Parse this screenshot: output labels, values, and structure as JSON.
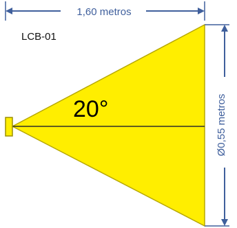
{
  "diagram": {
    "length_label": "1,60 metros",
    "diameter_label": "Ø0,55 metros",
    "model_label": "LCB-01",
    "angle_label": "20°",
    "colors": {
      "beam_fill": "#ffee00",
      "beam_stroke": "#b7a800",
      "dimension": "#3f5f9c",
      "text": "#111111",
      "axis": "#2b2b2b"
    }
  }
}
